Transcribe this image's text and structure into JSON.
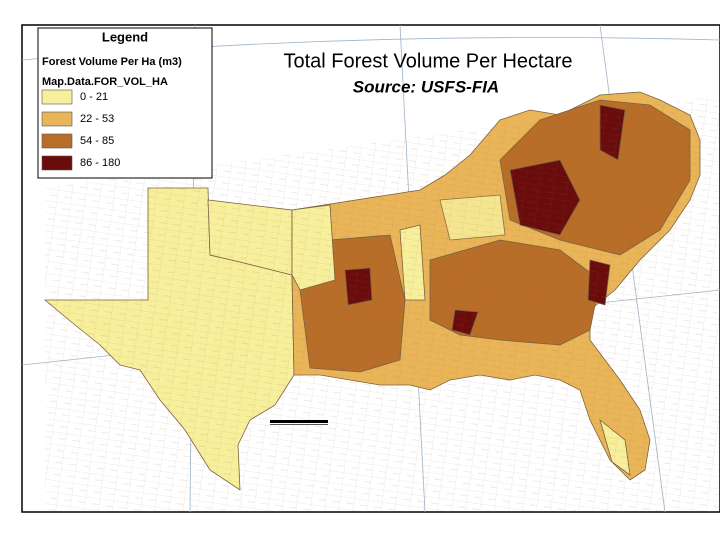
{
  "title": "Total Forest Volume Per Hectare",
  "source": "Source: USFS-FIA",
  "legend": {
    "heading": "Legend",
    "variable": "Forest Volume Per Ha (m3)",
    "field": "Map.Data.FOR_VOL_HA",
    "items": [
      {
        "label": "0 - 21",
        "color": "#f7ef9c"
      },
      {
        "label": "22 - 53",
        "color": "#e9b558"
      },
      {
        "label": "54 - 85",
        "color": "#b86d28"
      },
      {
        "label": "86 - 180",
        "color": "#6a0c0c"
      }
    ]
  }
}
